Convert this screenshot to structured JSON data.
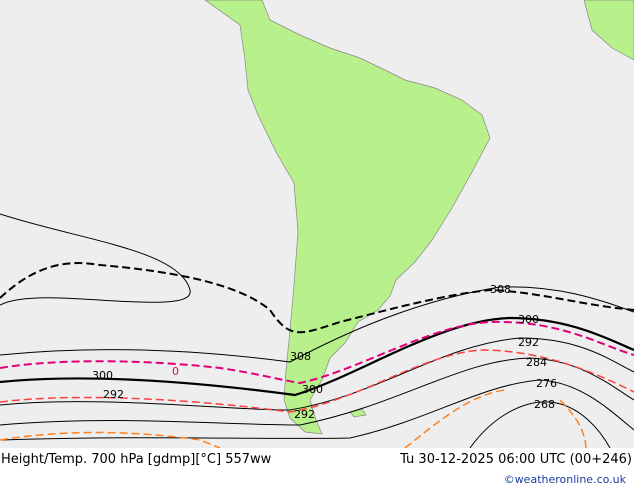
{
  "title": "Height/Temp. 700 hPa [gdmp][°C] 557ww",
  "datetime": "Tu 30-12-2025 06:00 UTC (00+246)",
  "credit": "©weatheronline.co.uk",
  "colors": {
    "ocean": "#eeeeee",
    "land": "#b8f08c",
    "height": "#000000",
    "temp_zero": "#e0007a",
    "temp_neg": "#ff4040",
    "temp_cold": "#ff8020"
  },
  "contour_labels": {
    "h308_east": "308",
    "h300_east": "300",
    "h292_east": "292",
    "h284": "284",
    "h276": "276",
    "h268": "268",
    "h300_west": "300",
    "h292_west": "292",
    "h308_mid": "308",
    "h300_mid": "300",
    "h292_mid": "292",
    "t0": "0"
  }
}
